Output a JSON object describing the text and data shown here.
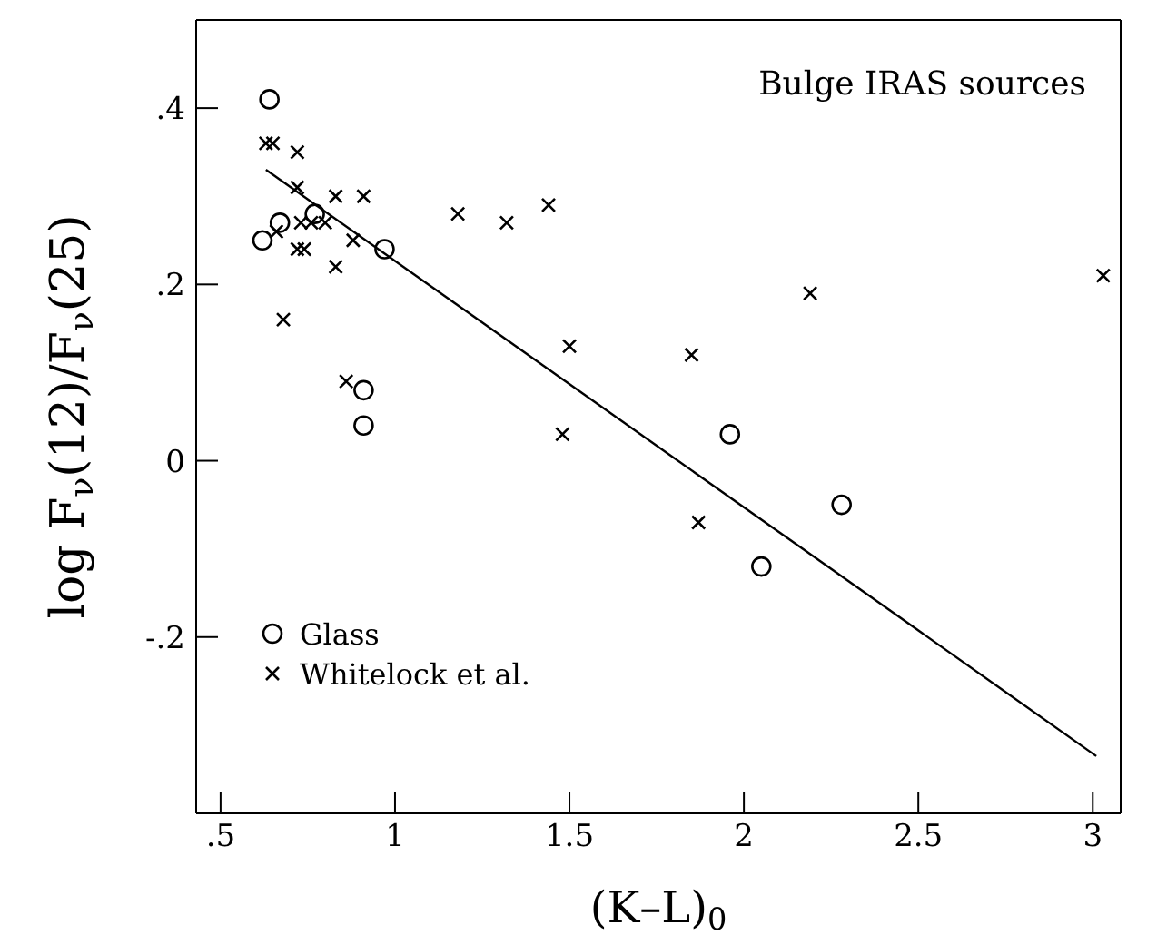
{
  "chart_data": {
    "type": "scatter",
    "xlabel": "(K–L)$_{0}$",
    "ylabel": "log F$_{ν}$(12)/F$_{ν}$(25)",
    "annotations": [
      "Bulge IRAS sources"
    ],
    "xlim": [
      0.43,
      3.08
    ],
    "ylim": [
      -0.4,
      0.5
    ],
    "xticks": [
      {
        "value": 0.5,
        "label": ".5"
      },
      1,
      1.5,
      2,
      2.5,
      3
    ],
    "yticks": [
      {
        "value": -0.2,
        "label": "-.2"
      },
      0,
      {
        "value": 0.2,
        "label": ".2"
      },
      {
        "value": 0.4,
        "label": ".4"
      }
    ],
    "legend": "bottom left",
    "series": [
      {
        "name": "Glass",
        "color": "#000000",
        "marker": "circle",
        "x": [
          0.64,
          0.62,
          0.67,
          0.77,
          0.97,
          0.91,
          0.91,
          1.96,
          2.05,
          2.28
        ],
        "values": [
          0.41,
          0.25,
          0.27,
          0.28,
          0.24,
          0.08,
          0.04,
          0.03,
          -0.12,
          -0.05
        ]
      },
      {
        "name": "Whitelock et al.",
        "color": "#000000",
        "marker": "cross",
        "x": [
          0.63,
          0.65,
          0.72,
          0.68,
          0.72,
          0.72,
          0.74,
          0.73,
          0.76,
          0.8,
          0.66,
          0.83,
          0.91,
          0.83,
          0.88,
          0.86,
          1.18,
          1.32,
          1.44,
          1.5,
          1.48,
          1.85,
          1.87,
          2.19,
          3.03
        ],
        "values": [
          0.36,
          0.36,
          0.35,
          0.16,
          0.31,
          0.24,
          0.24,
          0.27,
          0.27,
          0.27,
          0.26,
          0.3,
          0.3,
          0.22,
          0.25,
          0.09,
          0.28,
          0.27,
          0.29,
          0.13,
          0.03,
          0.12,
          -0.07,
          0.19,
          0.21
        ]
      },
      {
        "type": "line",
        "color": "#000000",
        "marker": "none",
        "line_style": "solid",
        "x": [
          0.63,
          3.01
        ],
        "values": [
          0.33,
          -0.335
        ]
      }
    ]
  }
}
